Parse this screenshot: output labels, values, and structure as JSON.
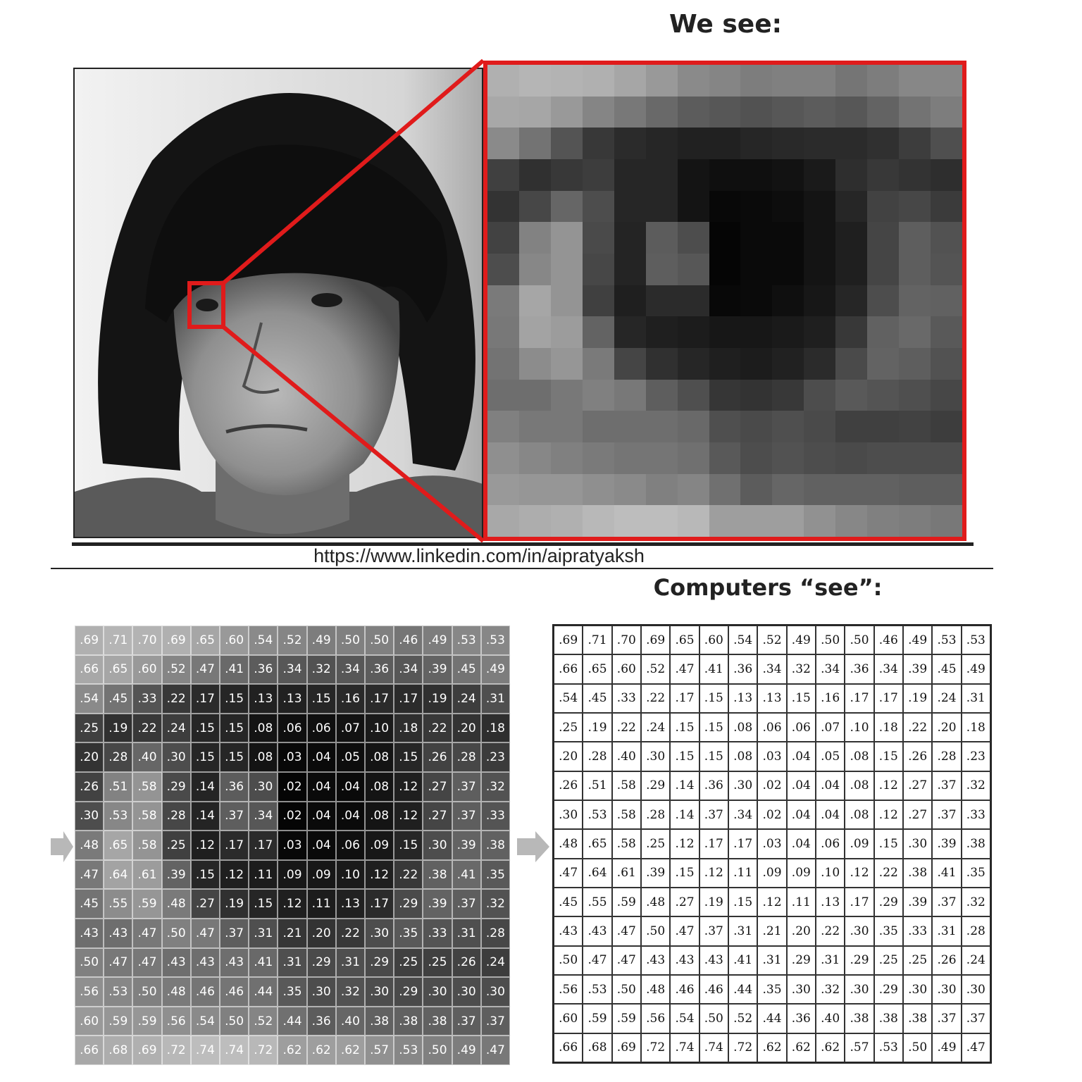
{
  "titles": {
    "we_see": "We see:",
    "computers_see": "Computers “see”:"
  },
  "credit": "https://www.linkedin.com/in/aipratyaksh",
  "colors": {
    "highlight_red": "#e01b1b",
    "divider": "#222222",
    "arrow_gray": "#b8b8b8"
  },
  "pixel_values": [
    [
      ".69",
      ".71",
      ".70",
      ".69",
      ".65",
      ".60",
      ".54",
      ".52",
      ".49",
      ".50",
      ".50",
      ".46",
      ".49",
      ".53",
      ".53"
    ],
    [
      ".66",
      ".65",
      ".60",
      ".52",
      ".47",
      ".41",
      ".36",
      ".34",
      ".32",
      ".34",
      ".36",
      ".34",
      ".39",
      ".45",
      ".49"
    ],
    [
      ".54",
      ".45",
      ".33",
      ".22",
      ".17",
      ".15",
      ".13",
      ".13",
      ".15",
      ".16",
      ".17",
      ".17",
      ".19",
      ".24",
      ".31"
    ],
    [
      ".25",
      ".19",
      ".22",
      ".24",
      ".15",
      ".15",
      ".08",
      ".06",
      ".06",
      ".07",
      ".10",
      ".18",
      ".22",
      ".20",
      ".18"
    ],
    [
      ".20",
      ".28",
      ".40",
      ".30",
      ".15",
      ".15",
      ".08",
      ".03",
      ".04",
      ".05",
      ".08",
      ".15",
      ".26",
      ".28",
      ".23"
    ],
    [
      ".26",
      ".51",
      ".58",
      ".29",
      ".14",
      ".36",
      ".30",
      ".02",
      ".04",
      ".04",
      ".08",
      ".12",
      ".27",
      ".37",
      ".32"
    ],
    [
      ".30",
      ".53",
      ".58",
      ".28",
      ".14",
      ".37",
      ".34",
      ".02",
      ".04",
      ".04",
      ".08",
      ".12",
      ".27",
      ".37",
      ".33"
    ],
    [
      ".48",
      ".65",
      ".58",
      ".25",
      ".12",
      ".17",
      ".17",
      ".03",
      ".04",
      ".06",
      ".09",
      ".15",
      ".30",
      ".39",
      ".38"
    ],
    [
      ".47",
      ".64",
      ".61",
      ".39",
      ".15",
      ".12",
      ".11",
      ".09",
      ".09",
      ".10",
      ".12",
      ".22",
      ".38",
      ".41",
      ".35"
    ],
    [
      ".45",
      ".55",
      ".59",
      ".48",
      ".27",
      ".19",
      ".15",
      ".12",
      ".11",
      ".13",
      ".17",
      ".29",
      ".39",
      ".37",
      ".32"
    ],
    [
      ".43",
      ".43",
      ".47",
      ".50",
      ".47",
      ".37",
      ".31",
      ".21",
      ".20",
      ".22",
      ".30",
      ".35",
      ".33",
      ".31",
      ".28"
    ],
    [
      ".50",
      ".47",
      ".47",
      ".43",
      ".43",
      ".43",
      ".41",
      ".31",
      ".29",
      ".31",
      ".29",
      ".25",
      ".25",
      ".26",
      ".24"
    ],
    [
      ".56",
      ".53",
      ".50",
      ".48",
      ".46",
      ".46",
      ".44",
      ".35",
      ".30",
      ".32",
      ".30",
      ".29",
      ".30",
      ".30",
      ".30"
    ],
    [
      ".60",
      ".59",
      ".59",
      ".56",
      ".54",
      ".50",
      ".52",
      ".44",
      ".36",
      ".40",
      ".38",
      ".38",
      ".38",
      ".37",
      ".37"
    ],
    [
      ".66",
      ".68",
      ".69",
      ".72",
      ".74",
      ".74",
      ".72",
      ".62",
      ".62",
      ".62",
      ".57",
      ".53",
      ".50",
      ".49",
      ".47"
    ]
  ]
}
